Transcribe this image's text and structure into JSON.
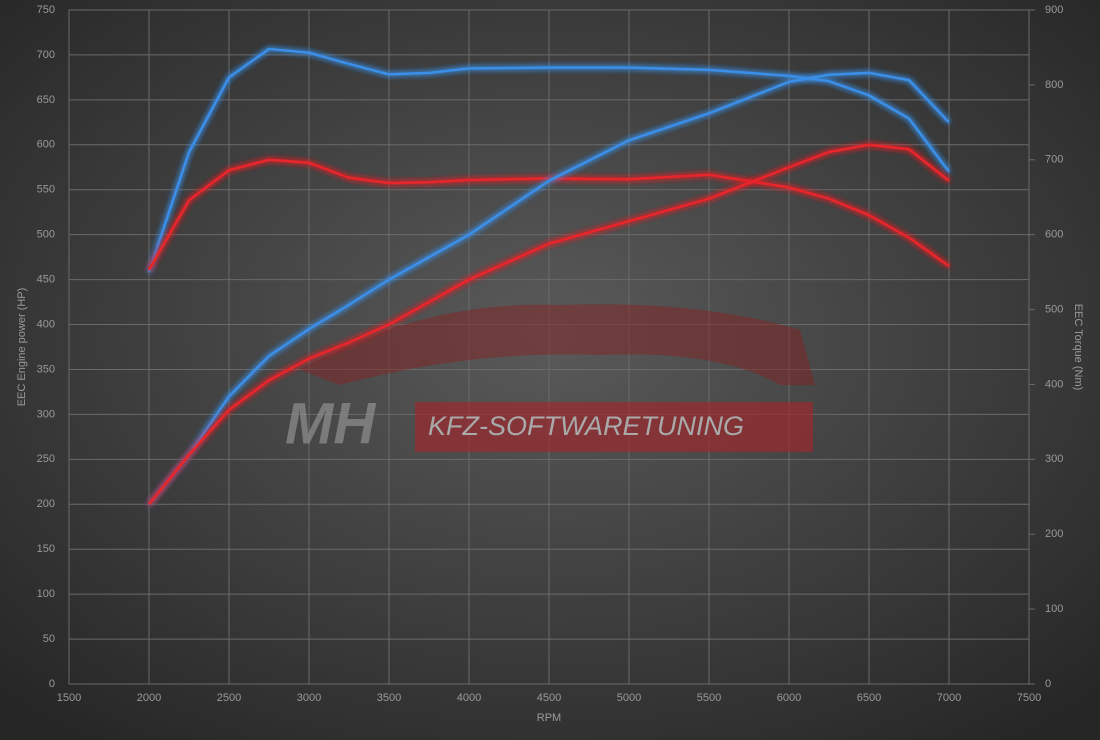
{
  "chart_data": {
    "type": "line",
    "xlabel": "RPM",
    "ylabel": "EEC Engine power (HP)",
    "y2label": "EEC Torque (Nm)",
    "annotations": [
      "MH",
      "KFZ-SOFTWARETUNING"
    ],
    "x": [
      2000,
      2250,
      2500,
      2750,
      3000,
      3250,
      3500,
      3750,
      4000,
      4500,
      5000,
      5500,
      6000,
      6250,
      6500,
      6750,
      7000
    ],
    "series": [
      {
        "color": "#3a8fe8",
        "axis": "y2",
        "values": [
          550,
          710,
          810,
          848,
          843,
          828,
          814,
          816,
          822,
          823,
          823,
          820,
          812,
          805,
          786,
          755,
          684
        ]
      },
      {
        "color": "#e8262b",
        "axis": "y2",
        "values": [
          553,
          646,
          686,
          700,
          696,
          676,
          669,
          670,
          673,
          675,
          674,
          680,
          663,
          648,
          626,
          596,
          558
        ]
      },
      {
        "color": "#3a8fe8",
        "values": [
          200,
          255,
          320,
          365,
          395,
          422,
          450,
          475,
          500,
          560,
          605,
          635,
          670,
          678,
          680,
          672,
          625
        ]
      },
      {
        "color": "#e8262b",
        "values": [
          200,
          255,
          305,
          338,
          362,
          380,
          400,
          425,
          450,
          490,
          515,
          540,
          575,
          592,
          600,
          595,
          560
        ]
      }
    ],
    "xlim": [
      1500,
      7500
    ],
    "xticks": [
      1500,
      2000,
      2500,
      3000,
      3500,
      4000,
      4500,
      5000,
      5500,
      6000,
      6500,
      7000,
      7500
    ],
    "ylim": [
      0,
      750
    ],
    "yticks": [
      0,
      50,
      100,
      150,
      200,
      250,
      300,
      350,
      400,
      450,
      500,
      550,
      600,
      650,
      700,
      750
    ],
    "y2lim": [
      0,
      900
    ],
    "y2ticks": [
      0,
      100,
      200,
      300,
      400,
      500,
      600,
      700,
      800,
      900
    ],
    "grid": true
  }
}
